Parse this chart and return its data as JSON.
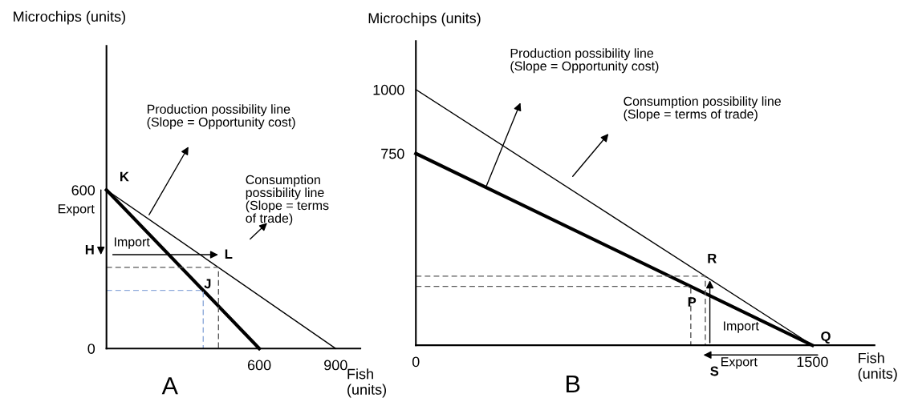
{
  "chart_data": [
    {
      "type": "line",
      "title": "A",
      "xlabel": "Fish\n(units)",
      "ylabel": "Microchips (units)",
      "xlim": [
        0,
        997
      ],
      "ylim": [
        0,
        1145
      ],
      "xticks": [
        600,
        900
      ],
      "yticks": [
        {
          "value": 0,
          "label": "0"
        },
        600
      ],
      "series": [
        {
          "color": "#000000",
          "x": [
            0,
            600
          ],
          "values": [
            600,
            0
          ]
        },
        {
          "color": "#000000",
          "x": [
            0,
            900
          ],
          "values": [
            600,
            0
          ]
        },
        {
          "color": "#595959",
          "line_style": "dashed",
          "x": [
            0,
            440,
            440
          ],
          "values": [
            307,
            307,
            0
          ]
        },
        {
          "color": "#8eaadb",
          "line_style": "dashed",
          "x": [
            0,
            380,
            380
          ],
          "values": [
            220,
            220,
            0
          ]
        }
      ],
      "annotations": [
        "Production possibility line\n(Slope = Opportunity cost)",
        "Consumption\npossibility line\n(Slope = terms\nof trade)",
        "Export",
        "Import",
        "H",
        {
          "text": "K",
          "x": 0,
          "y": 600
        },
        {
          "text": "L",
          "x": 440,
          "y": 307
        },
        {
          "text": "J",
          "x": 380,
          "y": 220
        }
      ]
    },
    {
      "type": "line",
      "title": "B",
      "xlabel": "Fish\n(units)",
      "ylabel": "Microchips (units)",
      "xlim": [
        0,
        1735
      ],
      "ylim": [
        0,
        1190
      ],
      "xticks": [
        0,
        1500
      ],
      "yticks": [
        750,
        1000
      ],
      "series": [
        {
          "color": "#000000",
          "x": [
            0,
            1500
          ],
          "values": [
            750,
            0
          ]
        },
        {
          "color": "#000000",
          "x": [
            0,
            1500
          ],
          "values": [
            1000,
            0
          ]
        },
        {
          "color": "#595959",
          "line_style": "dashed",
          "x": [
            0,
            1095,
            1095
          ],
          "values": [
            270,
            270,
            0
          ]
        },
        {
          "color": "#595959",
          "line_style": "dashed",
          "x": [
            0,
            1040,
            1040
          ],
          "values": [
            230,
            230,
            0
          ]
        }
      ],
      "annotations": [
        "Production possibility line\n(Slope = Opportunity cost)",
        "Consumption possibility line\n(Slope = terms of trade)",
        "Export",
        "Import",
        "S",
        {
          "text": "R",
          "x": 1095,
          "y": 270
        },
        {
          "text": "P",
          "x": 1040,
          "y": 230
        },
        {
          "text": "Q",
          "x": 1500,
          "y": 0
        }
      ]
    }
  ]
}
